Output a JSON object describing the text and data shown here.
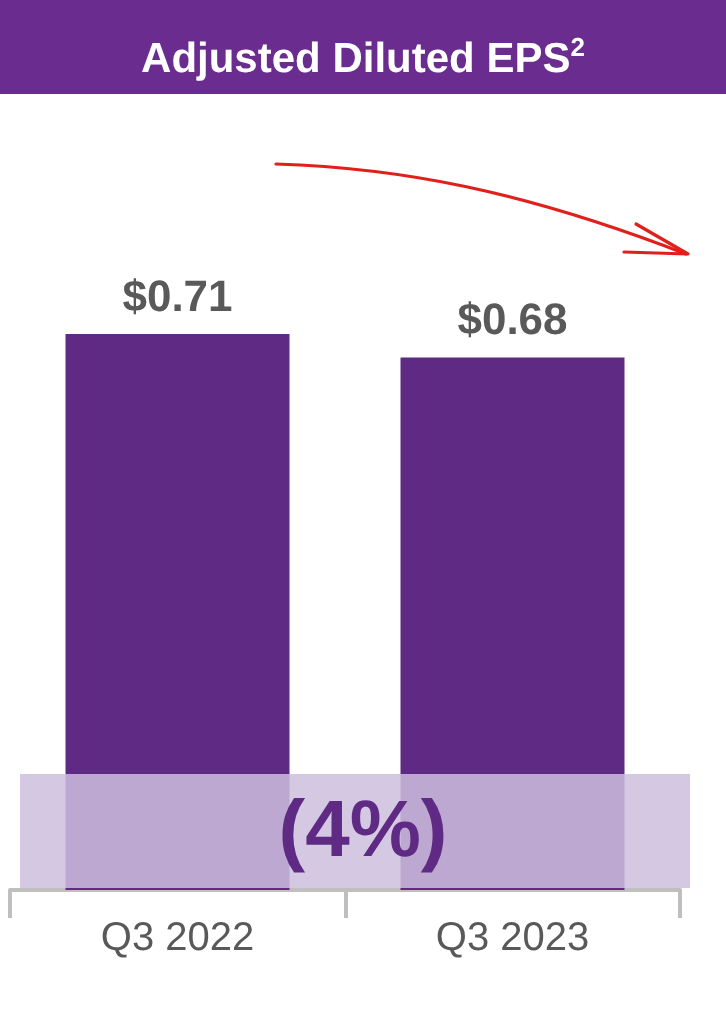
{
  "chart_data": {
    "type": "bar",
    "title": "Adjusted Diluted EPS$^{2}$",
    "categories": [
      "Q3 2022",
      "Q3 2023"
    ],
    "values": [
      0.71,
      0.68
    ],
    "color": "#5f2a84",
    "value_labels": [
      "$0.71",
      "$0.68"
    ],
    "annotations": [
      "(4%)"
    ],
    "tick_labels": "x"
  }
}
